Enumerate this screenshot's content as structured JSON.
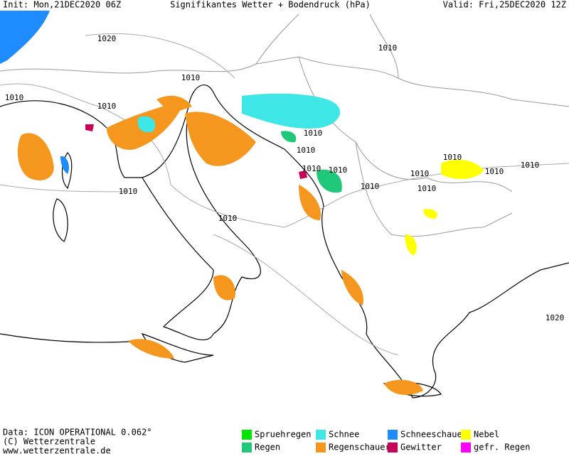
{
  "header": {
    "init": "Init: Mon,21DEC2020 06Z",
    "title": "Signifikantes Wetter  +  Bodendruck (hPa)",
    "valid": "Valid: Fri,25DEC2020 12Z"
  },
  "footer": {
    "lines": [
      "Data: ICON OPERATIONAL 0.062°",
      "(C) Wetterzentrale",
      "www.wetterzentrale.de"
    ]
  },
  "legend": [
    {
      "label": "Spruehregen",
      "color": "#00e600"
    },
    {
      "label": "Schnee",
      "color": "#3ee6e6"
    },
    {
      "label": "Schneeschauer",
      "color": "#1e8cff"
    },
    {
      "label": "Nebel",
      "color": "#ffff00"
    },
    {
      "label": "Regen",
      "color": "#1ec878"
    },
    {
      "label": "Regenschauer",
      "color": "#f5961e"
    },
    {
      "label": "Gewitter",
      "color": "#c8005a"
    },
    {
      "label": "gefr. Regen",
      "color": "#ff00ff"
    }
  ],
  "isobar_labels": [
    "1020",
    "1010",
    "1010",
    "1010",
    "1010",
    "1010",
    "1010",
    "1010",
    "1010",
    "1010",
    "1010",
    "1010",
    "1010",
    "1010",
    "1010",
    "1010",
    "1010",
    "1020"
  ]
}
